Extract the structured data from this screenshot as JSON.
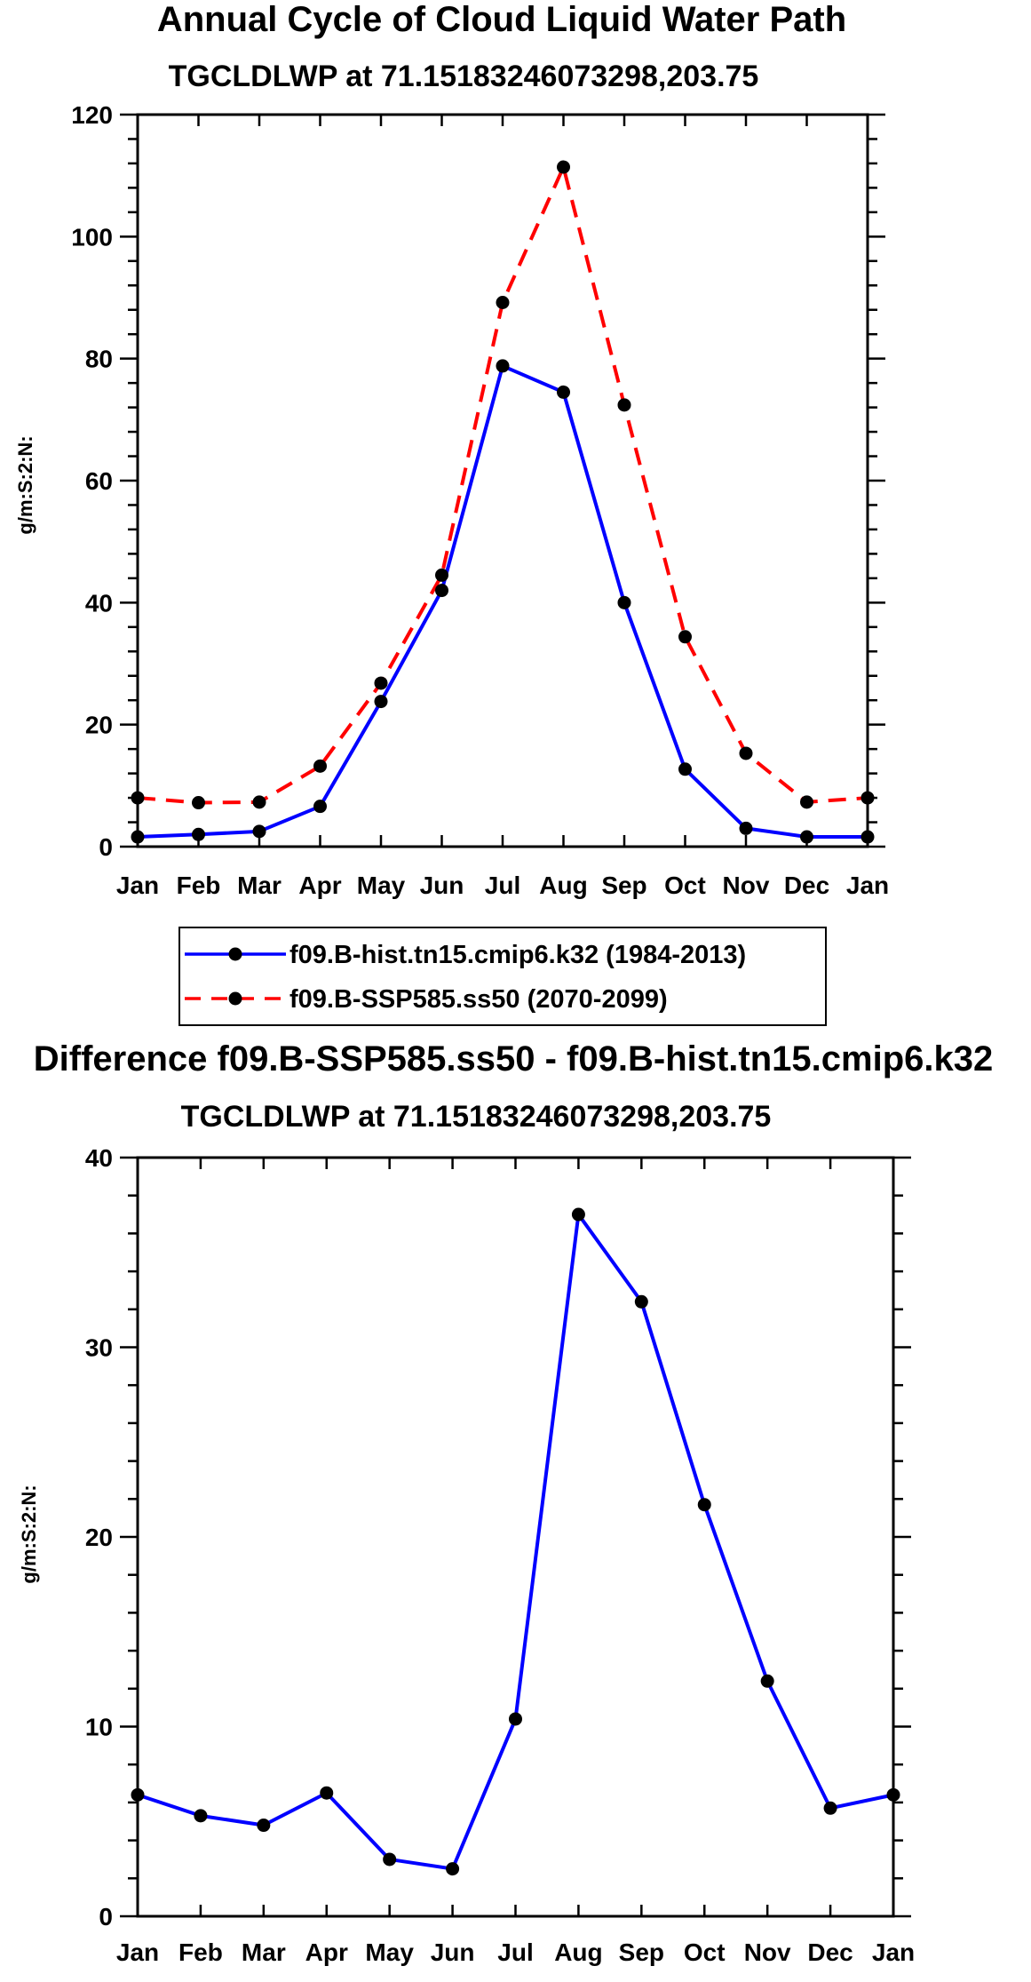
{
  "chart_data": [
    {
      "type": "line",
      "title": "Annual Cycle of Cloud Liquid Water Path",
      "subtitle": "TGCLDLWP at 71.15183246073298,203.75",
      "xlabel": "",
      "ylabel": "g/m:S:2:N:",
      "categories": [
        "Jan",
        "Feb",
        "Mar",
        "Apr",
        "May",
        "Jun",
        "Jul",
        "Aug",
        "Sep",
        "Oct",
        "Nov",
        "Dec",
        "Jan"
      ],
      "ylim": [
        0,
        120
      ],
      "yticks": [
        0,
        20,
        40,
        60,
        80,
        100,
        120
      ],
      "series": [
        {
          "name": "f09.B-hist.tn15.cmip6.k32 (1984-2013)",
          "color": "#0000ff",
          "dash": "solid",
          "values": [
            1.6,
            2.0,
            2.5,
            6.6,
            23.8,
            42.0,
            78.8,
            74.5,
            40.0,
            12.7,
            3.0,
            1.6,
            1.6
          ]
        },
        {
          "name": "f09.B-SSP585.ss50 (2070-2099)",
          "color": "#ff0000",
          "dash": "dashed",
          "values": [
            8.0,
            7.2,
            7.3,
            13.2,
            26.8,
            44.5,
            89.2,
            111.4,
            72.4,
            34.4,
            15.3,
            7.3,
            8.0
          ]
        }
      ]
    },
    {
      "type": "line",
      "title": "Difference f09.B-SSP585.ss50 - f09.B-hist.tn15.cmip6.k32",
      "subtitle": "TGCLDLWP at 71.15183246073298,203.75",
      "xlabel": "",
      "ylabel": "g/m:S:2:N:",
      "categories": [
        "Jan",
        "Feb",
        "Mar",
        "Apr",
        "May",
        "Jun",
        "Jul",
        "Aug",
        "Sep",
        "Oct",
        "Nov",
        "Dec",
        "Jan"
      ],
      "ylim": [
        0,
        40
      ],
      "yticks": [
        0,
        10,
        20,
        30,
        40
      ],
      "series": [
        {
          "name": "difference",
          "color": "#0000ff",
          "dash": "solid",
          "values": [
            6.4,
            5.3,
            4.8,
            6.5,
            3.0,
            2.5,
            10.4,
            37.0,
            32.4,
            21.7,
            12.4,
            5.7,
            6.4
          ]
        }
      ]
    }
  ]
}
